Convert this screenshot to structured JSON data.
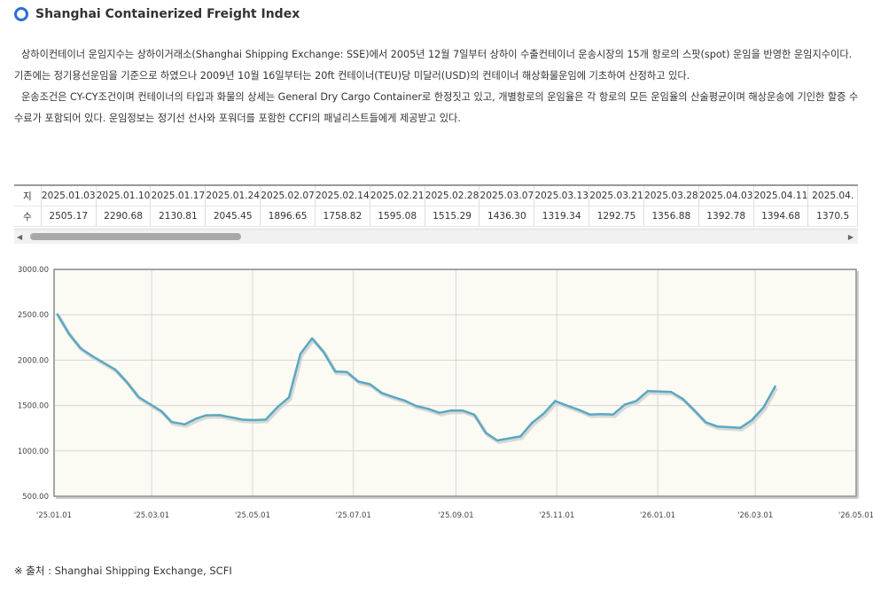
{
  "header": {
    "title": "Shanghai Containerized Freight Index"
  },
  "description": {
    "para1": "상하이컨테이너 운임지수는 상하이거래소(Shanghai Shipping Exchange: SSE)에서 2005년 12월 7일부터 상하이 수출컨테이너 운송시장의 15개 항로의 스팟(spot) 운임을 반영한 운임지수이다. 기존에는 정기용선운임을 기준으로 하였으나 2009년 10월 16일부터는 20ft 컨테이너(TEU)당 미달러(USD)의 컨테이너 해상화물운임에 기초하여 산정하고 있다.",
    "para2": "운송조건은 CY-CY조건이며 컨테이너의 타입과 화물의 상세는 General Dry Cargo Container로 한정짓고 있고, 개별항로의 운임율은 각 항로의 모든 운임율의 산술평균이며 해상운송에 기인한 할증 수수료가 포함되어 있다. 운임정보는 정기선 선사와 포워더를 포함한 CCFI의 패널리스트들에게 제공받고 있다."
  },
  "table": {
    "row_headers": [
      "지",
      "수"
    ],
    "dates": [
      "2025.01.03",
      "2025.01.10",
      "2025.01.17",
      "2025.01.24",
      "2025.02.07",
      "2025.02.14",
      "2025.02.21",
      "2025.02.28",
      "2025.03.07",
      "2025.03.13",
      "2025.03.21",
      "2025.03.28",
      "2025.04.03",
      "2025.04.11",
      "2025.04."
    ],
    "values": [
      "2505.17",
      "2290.68",
      "2130.81",
      "2045.45",
      "1896.65",
      "1758.82",
      "1595.08",
      "1515.29",
      "1436.30",
      "1319.34",
      "1292.75",
      "1356.88",
      "1392.78",
      "1394.68",
      "1370.5"
    ]
  },
  "source": "※ 출처 : Shanghai Shipping Exchange, SCFI",
  "colors": {
    "line": "#5ba8c0",
    "plot_bg": "#fbfbf3",
    "grid": "#d6d6d6",
    "icon": "#2c6fd1"
  },
  "chart_data": {
    "type": "line",
    "x_ticks": [
      "'25.01.01",
      "'25.03.01",
      "'25.05.01",
      "'25.07.01",
      "'25.09.01",
      "'25.11.01",
      "'26.01.01",
      "'26.03.01",
      "'26.05.01"
    ],
    "x_tick_dates": [
      "2025-01-01",
      "2025-03-01",
      "2025-05-01",
      "2025-07-01",
      "2025-09-01",
      "2025-11-01",
      "2026-01-01",
      "2026-03-01",
      "2026-05-01"
    ],
    "y_ticks": [
      "500.00",
      "1000.00",
      "1500.00",
      "2000.00",
      "2500.00",
      "3000.00"
    ],
    "ylim": [
      500,
      3000
    ],
    "xlim": [
      "2025-01-01",
      "2026-05-01"
    ],
    "grid": true,
    "series": [
      {
        "x": [
          "2025-01-03",
          "2025-01-10",
          "2025-01-17",
          "2025-01-24",
          "2025-02-07",
          "2025-02-14",
          "2025-02-21",
          "2025-02-28",
          "2025-03-07",
          "2025-03-13",
          "2025-03-21",
          "2025-03-28",
          "2025-04-03",
          "2025-04-11",
          "2025-04-18",
          "2025-04-25",
          "2025-05-02",
          "2025-05-09",
          "2025-05-16",
          "2025-05-23",
          "2025-05-30",
          "2025-06-06",
          "2025-06-13",
          "2025-06-20",
          "2025-06-27",
          "2025-07-04",
          "2025-07-11",
          "2025-07-18",
          "2025-07-25",
          "2025-08-01",
          "2025-08-08",
          "2025-08-15",
          "2025-08-22",
          "2025-08-29",
          "2025-09-05",
          "2025-09-12",
          "2025-09-19",
          "2025-09-26",
          "2025-10-10",
          "2025-10-17",
          "2025-10-24",
          "2025-10-31",
          "2025-11-07",
          "2025-11-14",
          "2025-11-21",
          "2025-11-28",
          "2025-12-05",
          "2025-12-12",
          "2025-12-19",
          "2025-12-26",
          "2026-01-02",
          "2026-01-09",
          "2026-01-16",
          "2026-01-23",
          "2026-01-30",
          "2026-02-06",
          "2026-02-20",
          "2026-02-27",
          "2026-03-06",
          "2026-03-13"
        ],
        "y": [
          2505.17,
          2290.68,
          2130.81,
          2045.45,
          1896.65,
          1758.82,
          1595.08,
          1515.29,
          1436.3,
          1319.34,
          1292.75,
          1356.88,
          1392.78,
          1394.68,
          1370.5,
          1345,
          1340,
          1345,
          1480,
          1590,
          2070,
          2240,
          2090,
          1875,
          1870,
          1765,
          1735,
          1640,
          1595,
          1555,
          1495,
          1465,
          1420,
          1445,
          1445,
          1400,
          1200,
          1115,
          1160,
          1310,
          1410,
          1550,
          1500,
          1455,
          1400,
          1405,
          1400,
          1510,
          1550,
          1660,
          1655,
          1650,
          1575,
          1450,
          1315,
          1270,
          1255,
          1340,
          1480,
          1710
        ]
      }
    ]
  }
}
